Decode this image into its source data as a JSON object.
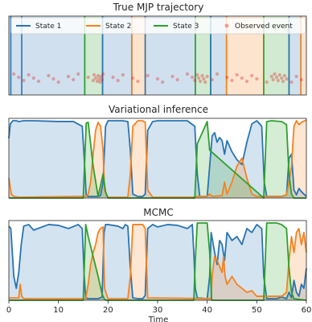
{
  "chart_data": [
    {
      "type": "area",
      "title": "True MJP trajectory",
      "xlim": [
        0,
        60
      ],
      "ylim": [
        0,
        1
      ],
      "segments": [
        {
          "from": 0,
          "to": 15.3,
          "state": 1
        },
        {
          "from": 15.3,
          "to": 18.9,
          "state": 3
        },
        {
          "from": 18.9,
          "to": 24.8,
          "state": 1
        },
        {
          "from": 24.8,
          "to": 27.5,
          "state": 2
        },
        {
          "from": 27.5,
          "to": 37.6,
          "state": 1
        },
        {
          "from": 37.6,
          "to": 40.7,
          "state": 3
        },
        {
          "from": 40.7,
          "to": 43.9,
          "state": 1
        },
        {
          "from": 43.9,
          "to": 51.4,
          "state": 2
        },
        {
          "from": 51.4,
          "to": 56.5,
          "state": 3
        },
        {
          "from": 56.5,
          "to": 58.9,
          "state": 1
        },
        {
          "from": 58.9,
          "to": 60,
          "state": 2
        }
      ],
      "extra_state1_lines": [
        0.4,
        2.6
      ],
      "events": [
        1,
        2,
        3,
        4,
        5,
        6,
        8,
        9,
        10,
        12,
        13,
        14,
        16,
        17,
        17.2,
        17.5,
        17.8,
        18,
        18.2,
        18.4,
        18.6,
        18.8,
        19,
        21,
        22,
        23,
        25,
        26,
        28,
        30,
        31,
        33,
        34,
        36,
        37,
        37.5,
        38,
        38.3,
        38.6,
        39,
        39.3,
        39.6,
        40,
        41,
        42,
        44,
        45,
        46,
        47,
        48,
        49,
        50,
        52,
        53,
        53.3,
        53.6,
        54,
        54.3,
        54.6,
        55,
        55.3,
        55.6,
        56,
        57,
        58,
        59
      ],
      "legend": [
        "State 1",
        "State 2",
        "State 3",
        "Observed event"
      ]
    },
    {
      "type": "area",
      "title": "Variational inference",
      "xlim": [
        0,
        60
      ],
      "ylim": [
        0,
        1
      ],
      "series": [
        {
          "name": "State 1",
          "x": [
            0,
            0.3,
            0.8,
            1.5,
            2,
            3,
            5,
            10,
            13,
            14.8,
            15.2,
            15.6,
            16,
            17,
            18,
            18.5,
            19,
            19.5,
            20,
            21,
            22,
            23,
            24,
            24.5,
            25,
            26,
            27,
            27.5,
            28,
            29,
            30,
            31,
            33,
            36,
            37.5,
            38,
            38.5,
            39,
            40,
            40.5,
            41,
            41.5,
            42,
            42.5,
            43,
            43.5,
            44,
            45,
            46,
            47,
            48,
            49,
            50,
            51,
            51.5,
            52,
            53,
            55,
            56,
            56.5,
            57,
            57.5,
            58,
            58.5,
            59,
            59.5,
            60
          ],
          "y": [
            0.75,
            0.93,
            0.97,
            0.97,
            0.96,
            0.97,
            0.97,
            0.96,
            0.96,
            0.9,
            0.5,
            0.04,
            0.02,
            0.02,
            0.02,
            0.03,
            0.2,
            0.9,
            0.97,
            0.97,
            0.97,
            0.97,
            0.96,
            0.6,
            0.05,
            0.02,
            0.02,
            0.05,
            0.85,
            0.96,
            0.97,
            0.97,
            0.97,
            0.97,
            0.9,
            0.3,
            0.02,
            0.02,
            0.02,
            0.4,
            0.78,
            0.82,
            0.7,
            0.76,
            0.72,
            0.55,
            0.72,
            0.58,
            0.48,
            0.42,
            0.7,
            0.93,
            0.97,
            0.9,
            0.2,
            0.02,
            0.02,
            0.02,
            0.04,
            0.5,
            0.55,
            0.1,
            0.04,
            0.12,
            0.08,
            0.05,
            0.02
          ]
        },
        {
          "name": "State 2",
          "x": [
            0,
            0.5,
            1,
            2,
            14,
            15.4,
            16,
            16.5,
            17,
            17.5,
            18,
            18.5,
            19,
            19.3,
            19.8,
            20,
            24,
            24.5,
            25,
            26,
            27,
            27.5,
            28,
            29,
            37,
            38,
            40,
            40.5,
            41,
            43,
            43.5,
            44,
            45,
            46,
            47,
            48,
            49,
            50,
            51,
            52,
            53,
            55,
            56,
            56.5,
            57,
            57.5,
            58,
            58.5,
            59,
            60
          ],
          "y": [
            0.25,
            0.05,
            0.02,
            0.01,
            0.02,
            0.02,
            0.05,
            0.2,
            0.55,
            0.85,
            0.95,
            0.9,
            0.6,
            0.1,
            0.02,
            0.01,
            0.01,
            0.3,
            0.9,
            0.97,
            0.97,
            0.95,
            0.1,
            0.01,
            0.01,
            0.02,
            0.02,
            0.05,
            0.02,
            0.03,
            0.2,
            0.05,
            0.2,
            0.4,
            0.5,
            0.25,
            0.05,
            0.02,
            0.02,
            0.02,
            0.02,
            0.02,
            0.04,
            0.2,
            0.4,
            0.9,
            0.97,
            0.92,
            0.95,
            0.98
          ]
        },
        {
          "name": "State 3",
          "x": [
            0,
            15,
            15.6,
            16,
            17,
            18,
            19,
            19.5,
            20,
            37.5,
            38,
            40,
            40.5,
            51.4,
            52,
            53,
            55,
            56,
            56.5,
            57,
            57.5,
            60
          ],
          "y": [
            0,
            0,
            0.94,
            0.95,
            0.4,
            0.02,
            0.3,
            0.08,
            0,
            0,
            0.68,
            0.96,
            0.6,
            0,
            0.96,
            0.97,
            0.96,
            0.92,
            0.3,
            0.05,
            0,
            0
          ]
        }
      ]
    },
    {
      "type": "area",
      "title": "MCMC",
      "xlim": [
        0,
        60
      ],
      "ylim": [
        0,
        1
      ],
      "xticks": [
        0,
        10,
        20,
        30,
        40,
        50,
        60
      ],
      "xlabel": "Time",
      "series": [
        {
          "name": "State 1",
          "x": [
            0,
            0.4,
            0.8,
            1,
            1.5,
            2,
            2.5,
            3,
            4,
            5,
            8,
            10,
            12,
            14,
            14.8,
            15.2,
            15.5,
            16,
            18,
            18.8,
            19.2,
            19.5,
            20,
            22,
            23,
            23.5,
            24,
            24.5,
            25,
            26,
            27,
            27.5,
            28,
            29,
            30,
            32,
            34,
            36,
            37,
            37.3,
            37.6,
            38,
            40,
            40.5,
            40.8,
            41.5,
            42,
            42.5,
            43,
            43.5,
            44,
            45,
            46,
            47,
            48,
            49,
            50,
            51,
            51.4,
            52,
            54,
            55,
            56,
            56.5,
            57,
            57.5,
            58,
            58.5,
            59,
            59.5,
            60
          ],
          "y": [
            0.93,
            0.9,
            0.5,
            0.3,
            0.15,
            0.35,
            0.7,
            0.93,
            0.95,
            0.88,
            0.95,
            0.94,
            0.9,
            0.95,
            0.9,
            0.3,
            0.03,
            0.02,
            0.02,
            0.04,
            0.85,
            0.95,
            0.95,
            0.93,
            0.9,
            0.95,
            0.93,
            0.4,
            0.03,
            0.02,
            0.02,
            0.06,
            0.9,
            0.95,
            0.92,
            0.95,
            0.94,
            0.9,
            0.95,
            0.6,
            0.15,
            0.03,
            0.02,
            0.3,
            0.85,
            0.6,
            0.45,
            0.75,
            0.7,
            0.5,
            0.85,
            0.75,
            0.8,
            0.7,
            0.9,
            0.85,
            0.95,
            0.9,
            0.3,
            0.02,
            0.02,
            0.04,
            0.02,
            0.1,
            0.03,
            0.25,
            0.1,
            0.05,
            0.2,
            0.15,
            0.4
          ]
        },
        {
          "name": "State 2",
          "x": [
            0,
            2,
            2.3,
            2.6,
            3,
            15.5,
            16,
            16.5,
            17,
            17.5,
            18,
            18.5,
            19,
            19.3,
            20,
            24,
            24.5,
            25,
            27,
            27.5,
            28,
            40.8,
            41,
            41.5,
            42,
            43,
            43.3,
            43.6,
            44,
            45,
            46,
            47,
            48,
            49,
            50,
            51,
            55,
            56,
            56.5,
            57,
            57.5,
            58,
            58.5,
            59,
            59.5,
            60
          ],
          "y": [
            0.03,
            0.03,
            0.2,
            0.05,
            0.02,
            0.02,
            0.2,
            0.45,
            0.6,
            0.7,
            0.85,
            0.9,
            0.92,
            0.15,
            0.02,
            0.02,
            0.3,
            0.95,
            0.95,
            0.9,
            0.03,
            0.02,
            0.3,
            0.55,
            0.5,
            0.35,
            0.55,
            0.3,
            0.2,
            0.3,
            0.2,
            0.15,
            0.1,
            0.12,
            0.05,
            0.05,
            0.05,
            0.1,
            0.5,
            0.8,
            0.6,
            0.85,
            0.9,
            0.7,
            0.85,
            0.6
          ]
        },
        {
          "name": "State 3",
          "x": [
            0,
            15,
            15.5,
            16,
            17,
            18,
            18.8,
            19.2,
            19.6,
            37.3,
            37.6,
            38,
            40,
            40.5,
            40.9,
            51.4,
            52,
            54,
            55,
            56,
            56.5,
            57,
            57.5,
            60
          ],
          "y": [
            0,
            0,
            0.95,
            0.8,
            0.55,
            0.3,
            0.08,
            0.02,
            0,
            0,
            0.5,
            0.97,
            0.97,
            0.6,
            0,
            0,
            0.97,
            0.97,
            0.95,
            0.9,
            0.4,
            0.1,
            0.02,
            0
          ]
        }
      ]
    }
  ],
  "colors": {
    "state1": "#2874b2",
    "state2": "#f5821f",
    "state3": "#2ca02c",
    "event": "#e31a1c"
  }
}
